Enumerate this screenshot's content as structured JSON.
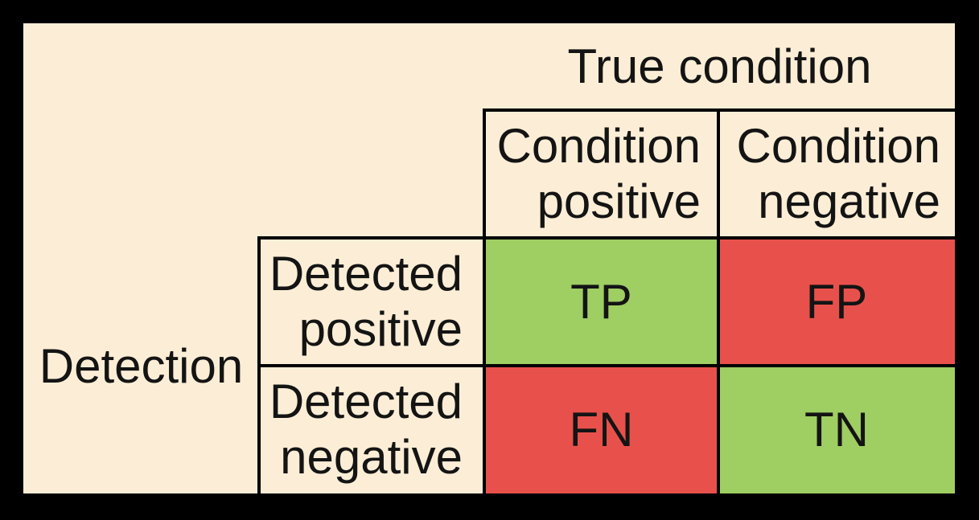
{
  "diagram": {
    "type": "confusion-matrix",
    "column_axis": {
      "title": "True condition",
      "headers": [
        {
          "line1": "Condition",
          "line2": "positive"
        },
        {
          "line1": "Condition",
          "line2": "negative"
        }
      ]
    },
    "row_axis": {
      "title": "Detection",
      "headers": [
        {
          "line1": "Detected",
          "line2": "positive"
        },
        {
          "line1": "Detected",
          "line2": "negative"
        }
      ]
    },
    "cells": {
      "tp": {
        "label": "TP",
        "row": "Detected positive",
        "column": "Condition positive",
        "bg": "#9FCE63"
      },
      "fp": {
        "label": "FP",
        "row": "Detected positive",
        "column": "Condition negative",
        "bg": "#E8514B"
      },
      "fn": {
        "label": "FN",
        "row": "Detected negative",
        "column": "Condition positive",
        "bg": "#E8514B"
      },
      "tn": {
        "label": "TN",
        "row": "Detected negative",
        "column": "Condition negative",
        "bg": "#9FCE63"
      }
    }
  },
  "colors": {
    "canvas": "#000000",
    "panel": "#FCEED6",
    "border": "#000000",
    "text": "#141414",
    "positive_cell": "#9FCE63",
    "negative_cell": "#E8514B"
  }
}
